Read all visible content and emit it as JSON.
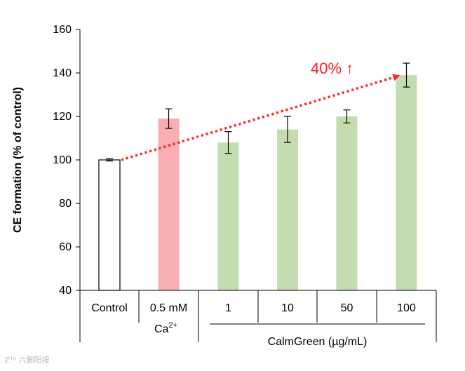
{
  "chart_data": {
    "type": "bar",
    "title": "",
    "ylabel": "CE formation (% of control)",
    "xlabel": "",
    "ylim": [
      40,
      160
    ],
    "yticks": [
      40,
      60,
      80,
      100,
      120,
      140,
      160
    ],
    "categories": [
      "Control",
      "0.5 mM",
      "1",
      "10",
      "50",
      "100"
    ],
    "category_sublabels": [
      "",
      "Ca",
      "",
      "",
      "",
      ""
    ],
    "category_superscripts": [
      "",
      "2+",
      "",
      "",
      "",
      ""
    ],
    "values": [
      100,
      119,
      108,
      114,
      120,
      139
    ],
    "errors": [
      0.5,
      4.5,
      5,
      6,
      3,
      5.5
    ],
    "group_label": "CalmGreen (µg/mL)",
    "group_members": [
      2,
      3,
      4,
      5
    ],
    "colors": {
      "control_fill": "#ffffff",
      "control_stroke": "#000000",
      "calcium": "#f9aeb4",
      "calmgreen": "#c4ddb0",
      "annotation": "#ff2020"
    },
    "bar_colors": [
      "#ffffff",
      "#f9aeb4",
      "#c4ddb0",
      "#c4ddb0",
      "#c4ddb0",
      "#c4ddb0"
    ],
    "annotation": {
      "text": "40%",
      "arrow_glyph": "↑",
      "from_category": 0,
      "from_value": 100,
      "to_category": 5,
      "to_value": 139
    }
  },
  "watermark": "ℤ¹⁰ 六脚阳报"
}
